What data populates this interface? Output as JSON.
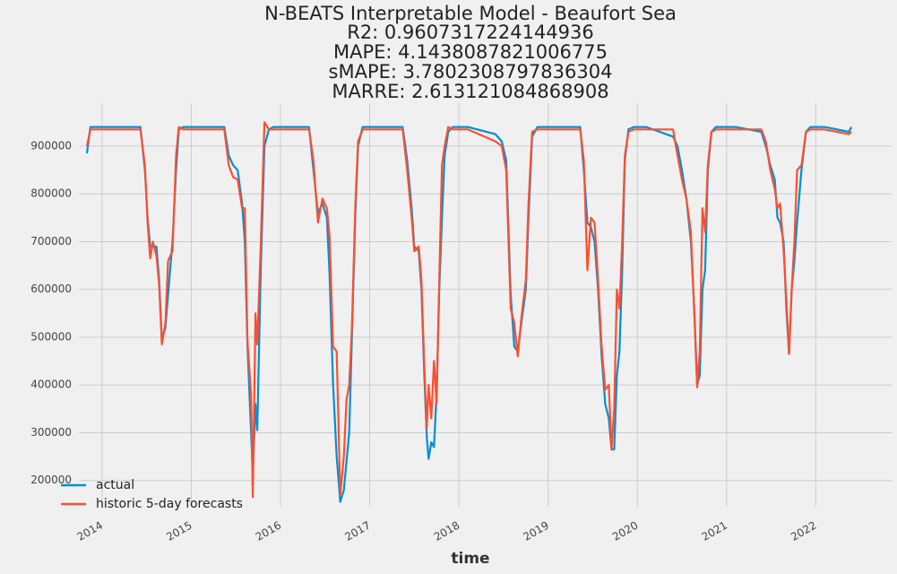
{
  "chart_data": {
    "type": "line",
    "title": "N-BEATS Interpretable Model - Beaufort Sea",
    "subtitles": [
      "R2: 0.9607317224144936",
      "MAPE: 4.1438087821006775",
      "sMAPE: 3.7802308797836304",
      "MARRE: 2.613121084868908"
    ],
    "x_label": "time",
    "x": [
      2013.83,
      2013.87,
      2014.0,
      2014.2,
      2014.43,
      2014.48,
      2014.51,
      2014.54,
      2014.57,
      2014.61,
      2014.64,
      2014.67,
      2014.71,
      2014.74,
      2014.79,
      2014.83,
      2014.86,
      2014.91,
      2015.2,
      2015.37,
      2015.42,
      2015.47,
      2015.52,
      2015.57,
      2015.6,
      2015.63,
      2015.67,
      2015.69,
      2015.72,
      2015.74,
      2015.78,
      2015.82,
      2015.87,
      2015.92,
      2016.1,
      2016.32,
      2016.37,
      2016.42,
      2016.47,
      2016.52,
      2016.55,
      2016.59,
      2016.63,
      2016.67,
      2016.71,
      2016.74,
      2016.77,
      2016.8,
      2016.84,
      2016.87,
      2016.92,
      2017.1,
      2017.37,
      2017.42,
      2017.47,
      2017.5,
      2017.55,
      2017.58,
      2017.61,
      2017.64,
      2017.66,
      2017.69,
      2017.72,
      2017.75,
      2017.78,
      2017.81,
      2017.84,
      2017.88,
      2017.93,
      2018.1,
      2018.41,
      2018.48,
      2018.53,
      2018.58,
      2018.62,
      2018.66,
      2018.7,
      2018.75,
      2018.78,
      2018.82,
      2018.88,
      2019.1,
      2019.36,
      2019.4,
      2019.44,
      2019.48,
      2019.52,
      2019.56,
      2019.6,
      2019.64,
      2019.68,
      2019.71,
      2019.74,
      2019.77,
      2019.8,
      2019.83,
      2019.86,
      2019.9,
      2019.96,
      2020.1,
      2020.4,
      2020.45,
      2020.5,
      2020.55,
      2020.6,
      2020.64,
      2020.67,
      2020.7,
      2020.73,
      2020.76,
      2020.79,
      2020.83,
      2020.88,
      2021.1,
      2021.39,
      2021.44,
      2021.49,
      2021.54,
      2021.57,
      2021.6,
      2021.64,
      2021.67,
      2021.7,
      2021.73,
      2021.76,
      2021.79,
      2021.84,
      2021.89,
      2021.94,
      2022.1,
      2022.37,
      2022.4
    ],
    "series": [
      {
        "name": "actual",
        "color": "#008fd5",
        "values": [
          885000,
          940000,
          940000,
          940000,
          940000,
          850000,
          750000,
          690000,
          690000,
          690000,
          620000,
          495000,
          520000,
          590000,
          700000,
          850000,
          935000,
          940000,
          940000,
          940000,
          880000,
          860000,
          850000,
          780000,
          700000,
          480000,
          300000,
          215000,
          360000,
          305000,
          650000,
          900000,
          935000,
          940000,
          940000,
          940000,
          850000,
          760000,
          780000,
          750000,
          630000,
          400000,
          250000,
          155000,
          180000,
          240000,
          300000,
          500000,
          760000,
          900000,
          940000,
          940000,
          940000,
          870000,
          770000,
          690000,
          680000,
          600000,
          430000,
          290000,
          245000,
          280000,
          270000,
          380000,
          600000,
          750000,
          880000,
          930000,
          940000,
          940000,
          925000,
          910000,
          870000,
          590000,
          480000,
          470000,
          530000,
          600000,
          750000,
          920000,
          940000,
          940000,
          940000,
          850000,
          740000,
          730000,
          700000,
          600000,
          460000,
          360000,
          330000,
          265000,
          265000,
          420000,
          470000,
          640000,
          870000,
          935000,
          940000,
          940000,
          920000,
          900000,
          850000,
          790000,
          700000,
          550000,
          400000,
          420000,
          600000,
          640000,
          850000,
          930000,
          940000,
          940000,
          930000,
          900000,
          860000,
          830000,
          750000,
          740000,
          700000,
          560000,
          465000,
          600000,
          660000,
          740000,
          850000,
          930000,
          940000,
          940000,
          930000,
          940000
        ]
      },
      {
        "name": "historic 5-day forecasts",
        "color": "#fc4f30",
        "values": [
          900000,
          935000,
          935000,
          935000,
          935000,
          860000,
          740000,
          665000,
          700000,
          670000,
          610000,
          485000,
          530000,
          660000,
          680000,
          880000,
          940000,
          935000,
          935000,
          935000,
          860000,
          835000,
          830000,
          770000,
          770000,
          490000,
          380000,
          165000,
          550000,
          485000,
          700000,
          950000,
          935000,
          935000,
          935000,
          935000,
          870000,
          740000,
          790000,
          770000,
          710000,
          480000,
          470000,
          170000,
          250000,
          370000,
          400000,
          520000,
          780000,
          910000,
          935000,
          935000,
          935000,
          850000,
          750000,
          680000,
          690000,
          620000,
          450000,
          310000,
          400000,
          330000,
          450000,
          360000,
          620000,
          860000,
          900000,
          940000,
          935000,
          935000,
          910000,
          900000,
          850000,
          560000,
          530000,
          460000,
          540000,
          620000,
          780000,
          930000,
          935000,
          935000,
          935000,
          870000,
          640000,
          750000,
          740000,
          620000,
          480000,
          390000,
          400000,
          265000,
          350000,
          600000,
          560000,
          700000,
          880000,
          930000,
          935000,
          935000,
          935000,
          880000,
          830000,
          790000,
          720000,
          540000,
          395000,
          470000,
          770000,
          720000,
          860000,
          930000,
          935000,
          935000,
          935000,
          910000,
          850000,
          810000,
          770000,
          780000,
          680000,
          580000,
          465000,
          600000,
          700000,
          850000,
          860000,
          930000,
          935000,
          935000,
          925000,
          930000
        ]
      }
    ],
    "xlim": [
      2013.74,
      2022.85
    ],
    "xticks": [
      2014,
      2015,
      2016,
      2017,
      2018,
      2019,
      2020,
      2021,
      2022
    ],
    "ylim": [
      145000,
      990000
    ],
    "yticks": [
      200000,
      300000,
      400000,
      500000,
      600000,
      700000,
      800000,
      900000
    ],
    "grid": true,
    "legend": "lower left"
  }
}
